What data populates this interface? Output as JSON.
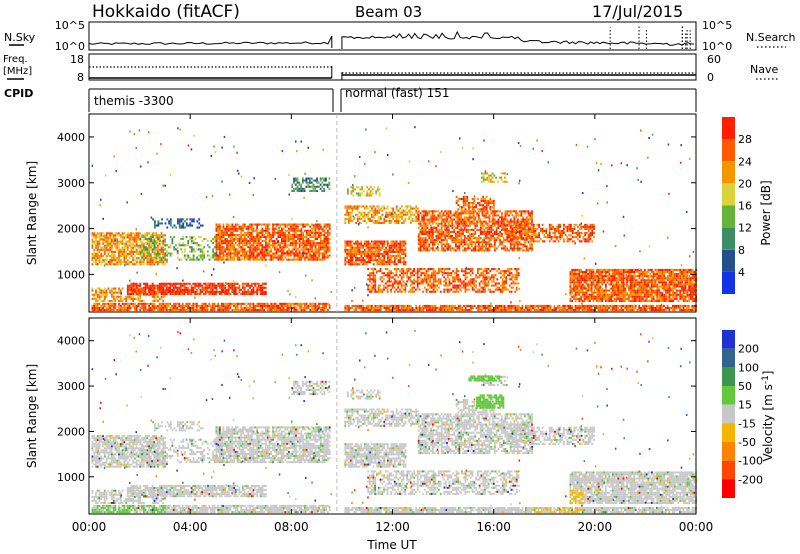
{
  "header": {
    "station": "Hokkaido (fitACF)",
    "beam": "Beam 03",
    "date": "17/Jul/2015"
  },
  "nsky_panel": {
    "left_label": "N.Sky",
    "right_label": "N.Search",
    "left_ticks": [
      "10^5",
      "10^0"
    ],
    "right_ticks": [
      "10^5",
      "10^0"
    ]
  },
  "freq_panel": {
    "left_label_1": "Freq.",
    "left_label_2": "[MHz]",
    "right_label": "Nave",
    "left_ticks": [
      "18",
      "8"
    ],
    "right_ticks": [
      "60",
      "0"
    ]
  },
  "cpid_panel": {
    "label": "CPID",
    "segments": [
      "themis -3300",
      "normal (fast) 151"
    ]
  },
  "chart_data": [
    {
      "type": "heatmap",
      "quantity": "Power",
      "ylabel": "Slant Range [km]",
      "xlabel": "Time UT",
      "xlim_hours": [
        0,
        24
      ],
      "ylim": [
        180,
        4500
      ],
      "yticks": [
        "1000",
        "2000",
        "3000",
        "4000"
      ],
      "xticks": [
        "00:00",
        "04:00",
        "08:00",
        "12:00",
        "16:00",
        "20:00",
        "00:00"
      ],
      "colorbar": {
        "label": "Power [dB]",
        "ticks": [
          "4",
          "8",
          "12",
          "16",
          "20",
          "24",
          "28"
        ],
        "colors": [
          "#1432e6",
          "#23508c",
          "#3c8c64",
          "#64b43c",
          "#dcd23c",
          "#f59600",
          "#ff5a00",
          "#ff1e00"
        ]
      }
    },
    {
      "type": "heatmap",
      "quantity": "Velocity",
      "ylabel": "Slant Range [km]",
      "xlabel": "Time UT",
      "xlim_hours": [
        0,
        24
      ],
      "ylim": [
        180,
        4500
      ],
      "yticks": [
        "1000",
        "2000",
        "3000",
        "4000"
      ],
      "xticks": [
        "00:00",
        "04:00",
        "08:00",
        "12:00",
        "16:00",
        "20:00",
        "00:00"
      ],
      "colorbar": {
        "label_main": "Velocity [m s",
        "label_exp": "-1",
        "label_end": "]",
        "ticks": [
          "200",
          "100",
          "50",
          "15",
          "-15",
          "-50",
          "-100",
          "-200"
        ],
        "colors": [
          "#1e32d2",
          "#32648c",
          "#3c9650",
          "#64c83c",
          "#c8c8c8",
          "#f5b400",
          "#ff8200",
          "#ff4600",
          "#ff0000"
        ]
      }
    }
  ]
}
